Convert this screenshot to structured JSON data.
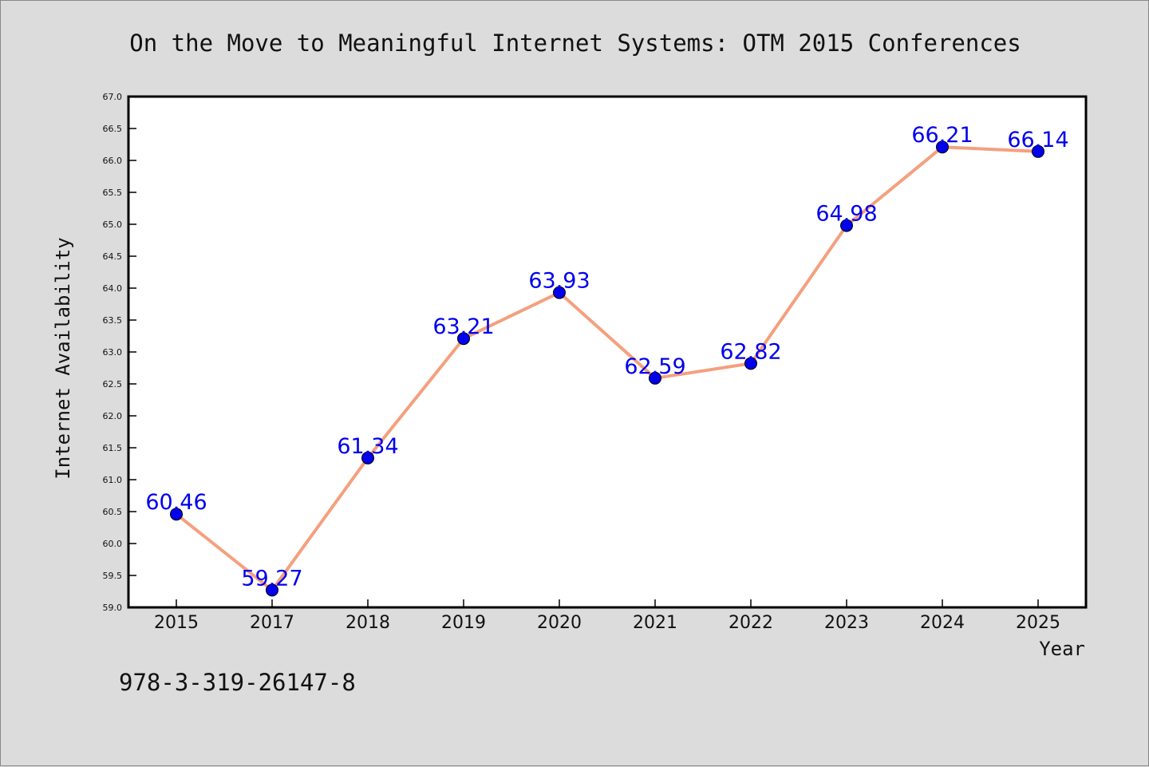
{
  "chart_data": {
    "type": "line",
    "title": "On the Move to Meaningful Internet Systems: OTM 2015 Conferences",
    "xlabel": "Year",
    "ylabel": "Internet Availability",
    "footnote": "978-3-319-26147-8",
    "categories": [
      "2015",
      "2017",
      "2018",
      "2019",
      "2020",
      "2021",
      "2022",
      "2023",
      "2024",
      "2025"
    ],
    "series": [
      {
        "values": [
          60.46,
          59.27,
          61.34,
          63.21,
          63.93,
          62.59,
          62.82,
          64.98,
          66.21,
          66.14
        ],
        "line_color": "#f4a07e",
        "marker_color": "#0000ee"
      }
    ],
    "data_labels": [
      "60.46",
      "59.27",
      "61.34",
      "63.21",
      "63.93",
      "62.59",
      "62.82",
      "64.98",
      "66.21",
      "66.14"
    ],
    "ylim": [
      59.0,
      67.0
    ],
    "yticks": [
      "59.0",
      "59.5",
      "60.0",
      "60.5",
      "61.0",
      "61.5",
      "62.0",
      "62.5",
      "63.0",
      "63.5",
      "64.0",
      "64.5",
      "65.0",
      "65.5",
      "66.0",
      "66.5",
      "67.0"
    ],
    "grid": false,
    "label_color": "#0000ee"
  }
}
